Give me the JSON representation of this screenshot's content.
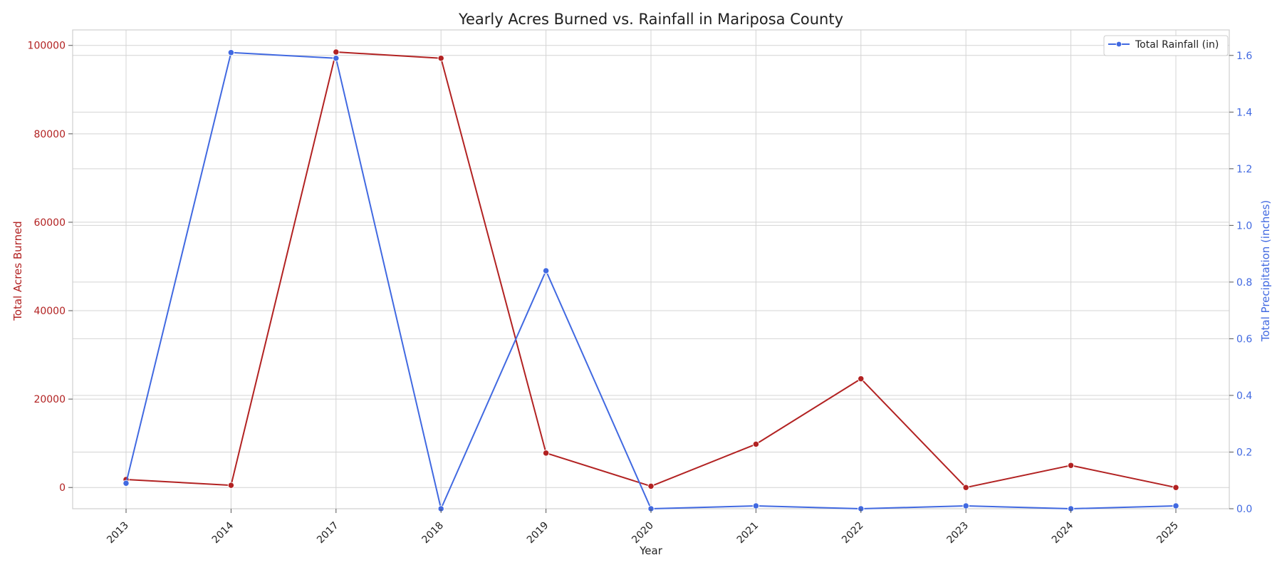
{
  "chart_data": {
    "type": "line",
    "title": "Yearly Acres Burned vs. Rainfall in Mariposa County",
    "xlabel": "Year",
    "categories": [
      "2013",
      "2014",
      "2017",
      "2018",
      "2019",
      "2020",
      "2021",
      "2022",
      "2023",
      "2024",
      "2025"
    ],
    "y_left": {
      "label": "Total Acres Burned",
      "ylim": [
        -4800,
        103500
      ],
      "ticks": [
        0,
        20000,
        40000,
        60000,
        80000,
        100000
      ],
      "color": "#b22222"
    },
    "y_right": {
      "label": "Total Precipitation (inches)",
      "ylim": [
        0,
        1.69
      ],
      "ticks": [
        "0.0",
        "0.2",
        "0.4",
        "0.6",
        "0.8",
        "1.0",
        "1.2",
        "1.4",
        "1.6"
      ],
      "color": "#4169e1"
    },
    "series": [
      {
        "axis": "left",
        "color": "#b22222",
        "values": [
          1800,
          500,
          98500,
          97100,
          7800,
          300,
          9800,
          24600,
          0,
          5000,
          0
        ]
      },
      {
        "name": "Total Rainfall (in)",
        "axis": "right",
        "color": "#4169e1",
        "values": [
          0.09,
          1.61,
          1.59,
          0.0,
          0.84,
          0.0,
          0.01,
          0.0,
          0.01,
          0.0,
          0.01
        ]
      }
    ],
    "legend": {
      "position": "top-right",
      "entries": [
        "Total Rainfall (in)"
      ]
    },
    "grid": true,
    "x_tick_rotation_deg": -45
  }
}
